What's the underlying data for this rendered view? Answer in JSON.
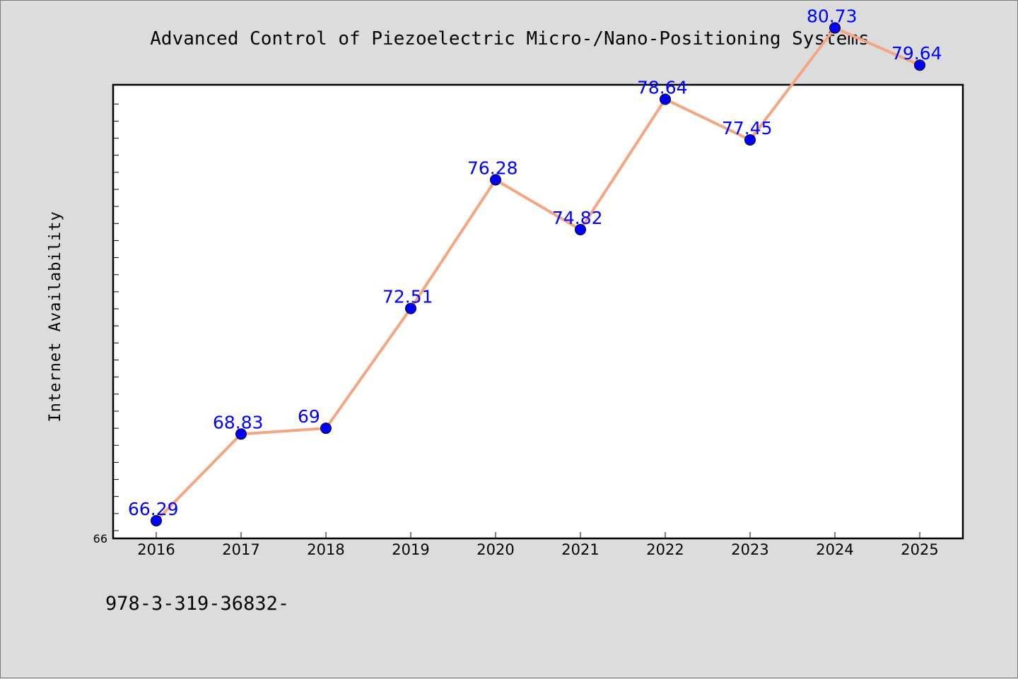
{
  "colors": {
    "background": "#dcdcdc",
    "plot_background": "#ffffff",
    "line": "#f4a582",
    "marker": "#0000ff",
    "value_label": "#0000ff",
    "axis": "#000000"
  },
  "footer": {
    "text": "978-3-319-36832-"
  },
  "chart_data": {
    "type": "line",
    "title": "Advanced Control of Piezoelectric Micro-/Nano-Positioning Systems",
    "xlabel": "",
    "ylabel": "Internet Availability",
    "categories": [
      "2016",
      "2017",
      "2018",
      "2019",
      "2020",
      "2021",
      "2022",
      "2023",
      "2024",
      "2025"
    ],
    "series": [
      {
        "values": [
          66.29,
          68.83,
          69,
          72.51,
          76.28,
          74.82,
          78.64,
          77.45,
          80.73,
          79.64
        ],
        "labels": [
          "66.29",
          "68.83",
          "69",
          "72.51",
          "76.28",
          "74.82",
          "78.64",
          "77.45",
          "80.73",
          "79.64"
        ]
      }
    ],
    "ylim": [
      66,
      84
    ],
    "ytick_labels": [
      "66"
    ],
    "minor_tick_step": 0.5,
    "grid": false,
    "legend": "none",
    "marker": "circle"
  }
}
